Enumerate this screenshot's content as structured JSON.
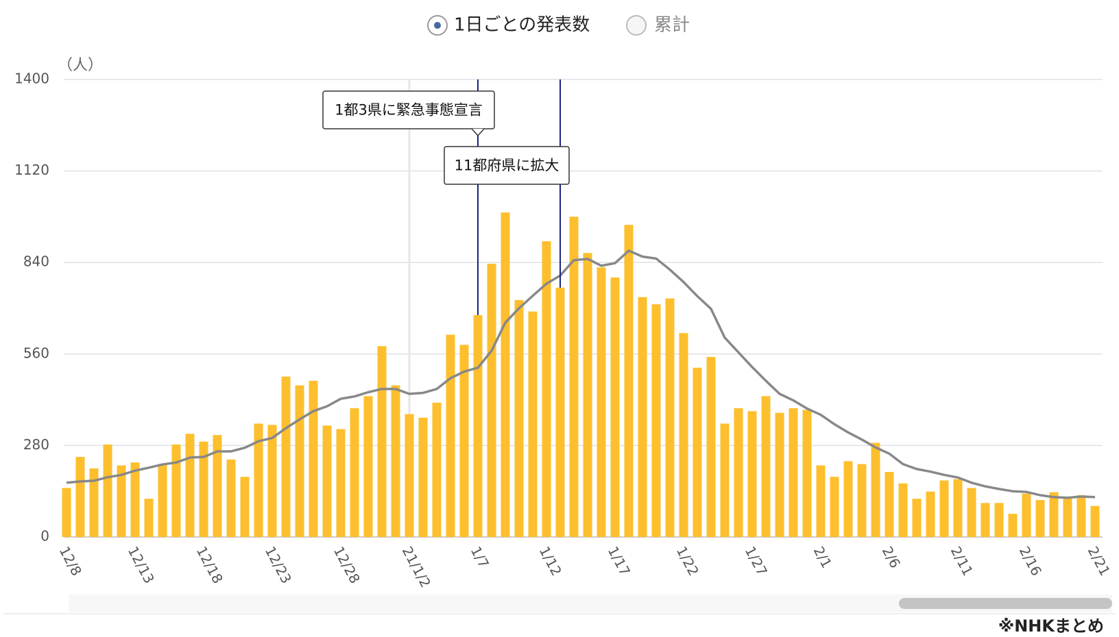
{
  "toggle": {
    "options": [
      "1日ごとの発表数",
      "累計"
    ]
  },
  "chart_data": {
    "type": "bar-line",
    "unit_label": "（人）",
    "categories": [
      "12/8",
      null,
      null,
      null,
      null,
      "12/13",
      null,
      null,
      null,
      null,
      "12/18",
      null,
      null,
      null,
      null,
      "12/23",
      null,
      null,
      null,
      null,
      "12/28",
      null,
      null,
      null,
      null,
      "21/1/2",
      null,
      null,
      null,
      null,
      "1/7",
      null,
      null,
      null,
      null,
      "1/12",
      null,
      null,
      null,
      null,
      "1/17",
      null,
      null,
      null,
      null,
      "1/22",
      null,
      null,
      null,
      null,
      "1/27",
      null,
      null,
      null,
      null,
      "2/1",
      null,
      null,
      null,
      null,
      "2/6",
      null,
      null,
      null,
      null,
      "2/11",
      null,
      null,
      null,
      null,
      "2/16",
      null,
      null,
      null,
      null,
      "2/21"
    ],
    "series": [
      {
        "type": "bar",
        "color": "#fdbf2d",
        "values": [
          150,
          245,
          210,
          283,
          219,
          228,
          117,
          223,
          283,
          316,
          292,
          312,
          237,
          184,
          347,
          343,
          491,
          464,
          478,
          341,
          330,
          394,
          431,
          584,
          464,
          376,
          365,
          411,
          619,
          588,
          679,
          836,
          993,
          725,
          690,
          905,
          763,
          980,
          869,
          825,
          794,
          955,
          734,
          712,
          730,
          624,
          518,
          551,
          347,
          394,
          385,
          431,
          380,
          394,
          389,
          219,
          184,
          232,
          223,
          288,
          199,
          164,
          117,
          139,
          173,
          177,
          150,
          104,
          104,
          71,
          133,
          113,
          137,
          124,
          128,
          95
        ]
      },
      {
        "type": "line",
        "color": "#888888",
        "values": [
          166,
          170,
          172,
          183,
          190,
          203,
          212,
          222,
          228,
          243,
          245,
          262,
          262,
          273,
          293,
          303,
          333,
          360,
          385,
          400,
          423,
          430,
          443,
          453,
          453,
          438,
          441,
          453,
          486,
          506,
          518,
          570,
          656,
          700,
          738,
          775,
          800,
          847,
          851,
          830,
          838,
          876,
          858,
          852,
          818,
          780,
          737,
          698,
          610,
          565,
          520,
          478,
          438,
          418,
          393,
          374,
          345,
          320,
          298,
          274,
          255,
          223,
          208,
          200,
          190,
          182,
          166,
          155,
          147,
          140,
          138,
          128,
          122,
          120,
          124,
          122
        ]
      }
    ],
    "ylim": [
      0,
      1400
    ],
    "yticks": [
      0,
      280,
      560,
      840,
      1120,
      1400
    ],
    "grid": true,
    "annotations": [
      "1都3県に緊急事態宣言",
      "11都府県に拡大"
    ],
    "source": "※NHKまとめ"
  }
}
